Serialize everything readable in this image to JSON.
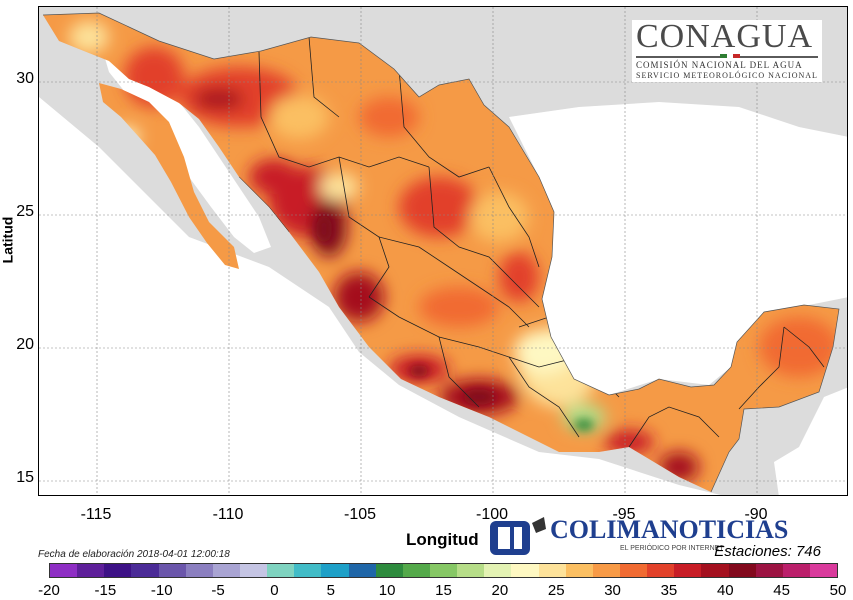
{
  "map": {
    "region": "Mexico",
    "variable_legend_min": -20,
    "variable_legend_max": 50
  },
  "axes": {
    "x_label": "Longitud",
    "y_label": "Latitud",
    "x_ticks": [
      "-115",
      "-110",
      "-105",
      "-100",
      "-95",
      "-90"
    ],
    "y_ticks": [
      "30",
      "25",
      "20",
      "15"
    ],
    "lon_range": [
      -117.2,
      -86.5
    ],
    "lat_range": [
      14.3,
      32.7
    ]
  },
  "footer": {
    "fecha": "Fecha de elaboración 2018-04-01 12:00:18",
    "estaciones": "Estaciones:  746"
  },
  "logo": {
    "title": "CONAGUA",
    "subtitle1": "COMISIÓN NACIONAL DEL AGUA",
    "subtitle2": "SERVICIO METEOROLÓGICO NACIONAL",
    "flag_colors": [
      "#2e7d32",
      "#ffffff",
      "#c62828"
    ]
  },
  "watermark": {
    "text": "COLIMANOTICIAS",
    "subtext": "EL PERIÓDICO POR INTERNET"
  },
  "colorbar": {
    "ticks": [
      "-20",
      "-15",
      "-10",
      "-5",
      "0",
      "5",
      "10",
      "15",
      "20",
      "25",
      "30",
      "35",
      "40",
      "45",
      "50"
    ],
    "colors": [
      "#8e2ec4",
      "#5e1f9a",
      "#3d1186",
      "#4b2b97",
      "#6b56ab",
      "#8b7fc0",
      "#a9a4d3",
      "#c5c5e4",
      "#7fd3c0",
      "#41bcc7",
      "#1ea0c8",
      "#1f66a8",
      "#2e8b3e",
      "#54a94a",
      "#86c765",
      "#b6dd88",
      "#e3f2b3",
      "#fef8c2",
      "#fde29a",
      "#fbbf62",
      "#f79a46",
      "#f16b32",
      "#e2412a",
      "#c81d26",
      "#a4101f",
      "#82091d",
      "#9c1342",
      "#bb1f6b",
      "#d93a9c"
    ]
  },
  "colors": {
    "ocean": "#ffffff",
    "land_outside": "#dcdcdc",
    "base_fill": "#f59a46",
    "hot": "#d7301f",
    "very_hot": "#8b0a1e",
    "cool": "#fde29a",
    "coolest": "#2e8b3e"
  }
}
